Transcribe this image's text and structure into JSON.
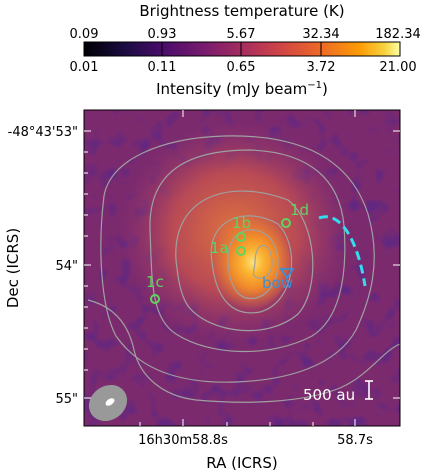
{
  "chart_data": {
    "type": "heatmap",
    "colorbar": {
      "top_label": "Brightness temperature (K)",
      "top_ticks": [
        "0.09",
        "0.93",
        "5.67",
        "32.34",
        "182.34"
      ],
      "bottom_ticks": [
        "0.01",
        "0.11",
        "0.65",
        "3.72",
        "21.00"
      ],
      "bottom_label": "Intensity (mJy beam",
      "bottom_label_sup": "−1",
      "bottom_label_close": ")",
      "colormap": "inferno"
    },
    "axes": {
      "xlabel": "RA (ICRS)",
      "ylabel": "Dec (ICRS)",
      "x_ticks": [
        "16h30m58.8s",
        "58.7s"
      ],
      "y_ticks": [
        "-48°43'53\"",
        "54\"",
        "55\""
      ]
    },
    "sources": [
      {
        "name": "1a",
        "marker": "circle",
        "color": "#5fd35f"
      },
      {
        "name": "1b",
        "marker": "circle",
        "color": "#5fd35f"
      },
      {
        "name": "1c",
        "marker": "circle",
        "color": "#5fd35f"
      },
      {
        "name": "1d",
        "marker": "circle",
        "color": "#5fd35f"
      },
      {
        "name": "bow",
        "marker": "triangle",
        "color": "#3a8fd9"
      }
    ],
    "scale_bar": {
      "label": "500 au"
    },
    "features": {
      "dashed_arc_color": "#33ddee",
      "contour_color": "#a0a0a0",
      "beam_color": "#999999"
    }
  }
}
